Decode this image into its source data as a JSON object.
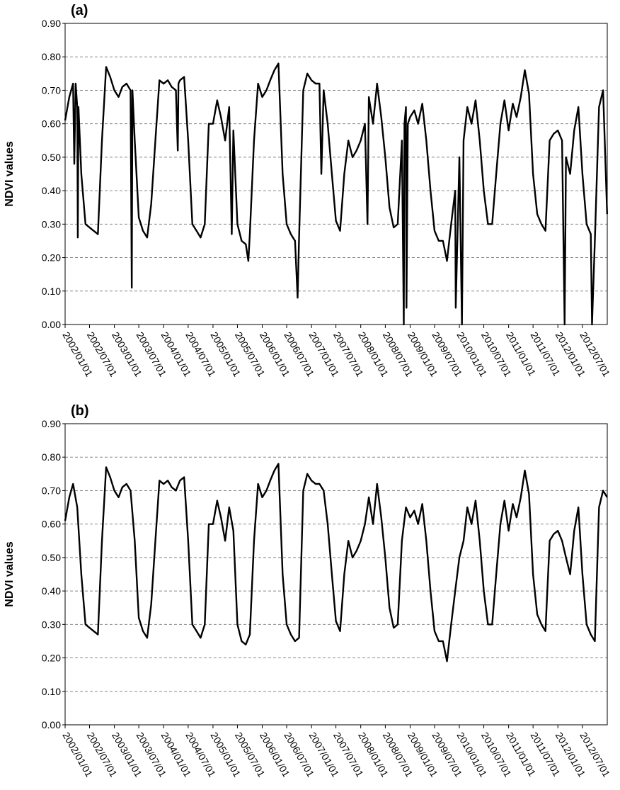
{
  "chart_data": [
    {
      "type": "line",
      "title": "(a)",
      "ylabel": "NDVI values",
      "color": "#000000",
      "grid": true,
      "xlim": [
        "2002/01/01",
        "2013/01/01"
      ],
      "ylim": [
        0,
        0.9
      ],
      "yticks": [
        {
          "value": 0,
          "label": "0.00"
        },
        {
          "value": 0.1,
          "label": "0.10"
        },
        {
          "value": 0.2,
          "label": "0.20"
        },
        {
          "value": 0.3,
          "label": "0.30"
        },
        {
          "value": 0.4,
          "label": "0.40"
        },
        {
          "value": 0.5,
          "label": "0.50"
        },
        {
          "value": 0.6,
          "label": "0.60"
        },
        {
          "value": 0.7,
          "label": "0.70"
        },
        {
          "value": 0.8,
          "label": "0.80"
        },
        {
          "value": 0.9,
          "label": "0.90"
        }
      ],
      "xticks": [
        "2002/01/01",
        "2002/07/01",
        "2003/01/01",
        "2003/07/01",
        "2004/01/01",
        "2004/07/01",
        "2005/01/01",
        "2005/07/01",
        "2006/01/01",
        "2006/07/01",
        "2007/01/01",
        "2007/07/01",
        "2008/01/01",
        "2008/07/01",
        "2009/01/01",
        "2009/07/01",
        "2010/01/01",
        "2010/07/01",
        "2011/01/01",
        "2011/07/01",
        "2012/01/01",
        "2012/07/01"
      ],
      "x": [
        "2002/01/01",
        "2002/02/01",
        "2002/03/01",
        "2002/03/10",
        "2002/03/20",
        "2002/04/01",
        "2002/04/05",
        "2002/04/10",
        "2002/05/01",
        "2002/06/01",
        "2002/07/01",
        "2002/08/01",
        "2002/09/01",
        "2002/10/01",
        "2002/11/01",
        "2002/12/01",
        "2003/01/01",
        "2003/02/01",
        "2003/03/01",
        "2003/04/01",
        "2003/05/01",
        "2003/05/10",
        "2003/05/15",
        "2003/06/01",
        "2003/07/01",
        "2003/08/01",
        "2003/09/01",
        "2003/10/01",
        "2003/11/01",
        "2003/12/01",
        "2004/01/01",
        "2004/02/01",
        "2004/03/01",
        "2004/04/01",
        "2004/04/15",
        "2004/04/20",
        "2004/05/01",
        "2004/06/01",
        "2004/07/01",
        "2004/08/01",
        "2004/09/01",
        "2004/10/01",
        "2004/11/01",
        "2004/12/01",
        "2005/01/01",
        "2005/02/01",
        "2005/03/01",
        "2005/04/01",
        "2005/05/01",
        "2005/05/20",
        "2005/06/01",
        "2005/07/01",
        "2005/08/01",
        "2005/09/01",
        "2005/09/20",
        "2005/10/01",
        "2005/11/01",
        "2005/12/01",
        "2006/01/01",
        "2006/02/01",
        "2006/03/01",
        "2006/04/01",
        "2006/05/01",
        "2006/06/01",
        "2006/07/01",
        "2006/08/01",
        "2006/09/01",
        "2006/09/20",
        "2006/10/01",
        "2006/11/01",
        "2006/12/01",
        "2007/01/01",
        "2007/02/01",
        "2007/03/01",
        "2007/03/15",
        "2007/04/01",
        "2007/05/01",
        "2007/06/01",
        "2007/07/01",
        "2007/08/01",
        "2007/09/01",
        "2007/10/01",
        "2007/11/01",
        "2007/12/01",
        "2008/01/01",
        "2008/02/01",
        "2008/02/20",
        "2008/03/01",
        "2008/04/01",
        "2008/05/01",
        "2008/06/01",
        "2008/07/01",
        "2008/08/01",
        "2008/09/01",
        "2008/10/01",
        "2008/11/01",
        "2008/11/15",
        "2008/11/20",
        "2008/12/01",
        "2008/12/05",
        "2008/12/15",
        "2009/01/01",
        "2009/02/01",
        "2009/03/01",
        "2009/04/01",
        "2009/05/01",
        "2009/06/01",
        "2009/07/01",
        "2009/08/01",
        "2009/09/01",
        "2009/10/01",
        "2009/11/01",
        "2009/12/01",
        "2009/12/05",
        "2010/01/01",
        "2010/01/20",
        "2010/02/01",
        "2010/03/01",
        "2010/04/01",
        "2010/05/01",
        "2010/06/01",
        "2010/07/01",
        "2010/08/01",
        "2010/09/01",
        "2010/10/01",
        "2010/11/01",
        "2010/12/01",
        "2011/01/01",
        "2011/02/01",
        "2011/03/01",
        "2011/04/01",
        "2011/05/01",
        "2011/06/01",
        "2011/07/01",
        "2011/08/01",
        "2011/09/01",
        "2011/10/01",
        "2011/11/01",
        "2011/12/01",
        "2012/01/01",
        "2012/02/01",
        "2012/02/20",
        "2012/03/01",
        "2012/04/01",
        "2012/05/01",
        "2012/06/01",
        "2012/07/01",
        "2012/08/01",
        "2012/09/01",
        "2012/09/10",
        "2012/10/01",
        "2012/11/01",
        "2012/12/01",
        "2012/12/31"
      ],
      "values": [
        0.61,
        0.68,
        0.72,
        0.48,
        0.72,
        0.65,
        0.26,
        0.65,
        0.45,
        0.3,
        0.29,
        0.28,
        0.27,
        0.55,
        0.77,
        0.74,
        0.7,
        0.68,
        0.71,
        0.72,
        0.7,
        0.11,
        0.7,
        0.55,
        0.32,
        0.28,
        0.26,
        0.36,
        0.55,
        0.73,
        0.72,
        0.73,
        0.71,
        0.7,
        0.52,
        0.72,
        0.73,
        0.74,
        0.55,
        0.3,
        0.28,
        0.26,
        0.3,
        0.6,
        0.6,
        0.67,
        0.62,
        0.55,
        0.65,
        0.27,
        0.58,
        0.3,
        0.25,
        0.24,
        0.19,
        0.27,
        0.55,
        0.72,
        0.68,
        0.7,
        0.73,
        0.76,
        0.78,
        0.45,
        0.3,
        0.27,
        0.25,
        0.08,
        0.26,
        0.7,
        0.75,
        0.73,
        0.72,
        0.72,
        0.45,
        0.7,
        0.6,
        0.45,
        0.31,
        0.28,
        0.45,
        0.55,
        0.5,
        0.52,
        0.55,
        0.6,
        0.3,
        0.68,
        0.6,
        0.72,
        0.62,
        0.5,
        0.35,
        0.29,
        0.3,
        0.55,
        0.0,
        0.6,
        0.65,
        0.05,
        0.6,
        0.62,
        0.64,
        0.6,
        0.66,
        0.55,
        0.4,
        0.28,
        0.25,
        0.25,
        0.19,
        0.3,
        0.4,
        0.05,
        0.5,
        0.0,
        0.55,
        0.65,
        0.6,
        0.67,
        0.55,
        0.4,
        0.3,
        0.3,
        0.45,
        0.6,
        0.67,
        0.58,
        0.66,
        0.62,
        0.68,
        0.76,
        0.69,
        0.45,
        0.33,
        0.3,
        0.28,
        0.55,
        0.57,
        0.58,
        0.55,
        0.0,
        0.5,
        0.45,
        0.58,
        0.65,
        0.45,
        0.3,
        0.27,
        0.0,
        0.25,
        0.65,
        0.7,
        0.33
      ]
    },
    {
      "type": "line",
      "title": "(b)",
      "ylabel": "NDVI values",
      "color": "#000000",
      "grid": true,
      "xlim": [
        "2002/01/01",
        "2013/01/01"
      ],
      "ylim": [
        0,
        0.9
      ],
      "yticks": [
        {
          "value": 0,
          "label": "0.00"
        },
        {
          "value": 0.1,
          "label": "0.10"
        },
        {
          "value": 0.2,
          "label": "0.20"
        },
        {
          "value": 0.3,
          "label": "0.30"
        },
        {
          "value": 0.4,
          "label": "0.40"
        },
        {
          "value": 0.5,
          "label": "0.50"
        },
        {
          "value": 0.6,
          "label": "0.60"
        },
        {
          "value": 0.7,
          "label": "0.70"
        },
        {
          "value": 0.8,
          "label": "0.80"
        },
        {
          "value": 0.9,
          "label": "0.90"
        }
      ],
      "xticks": [
        "2002/01/01",
        "2002/07/01",
        "2003/01/01",
        "2003/07/01",
        "2004/01/01",
        "2004/07/01",
        "2005/01/01",
        "2005/07/01",
        "2006/01/01",
        "2006/07/01",
        "2007/01/01",
        "2007/07/01",
        "2008/01/01",
        "2008/07/01",
        "2009/01/01",
        "2009/07/01",
        "2010/01/01",
        "2010/07/01",
        "2011/01/01",
        "2011/07/01",
        "2012/01/01",
        "2012/07/01"
      ],
      "x": [
        "2002/01/01",
        "2002/02/01",
        "2002/03/01",
        "2002/04/01",
        "2002/05/01",
        "2002/06/01",
        "2002/07/01",
        "2002/08/01",
        "2002/09/01",
        "2002/10/01",
        "2002/11/01",
        "2002/12/01",
        "2003/01/01",
        "2003/02/01",
        "2003/03/01",
        "2003/04/01",
        "2003/05/01",
        "2003/06/01",
        "2003/07/01",
        "2003/08/01",
        "2003/09/01",
        "2003/10/01",
        "2003/11/01",
        "2003/12/01",
        "2004/01/01",
        "2004/02/01",
        "2004/03/01",
        "2004/04/01",
        "2004/05/01",
        "2004/06/01",
        "2004/07/01",
        "2004/08/01",
        "2004/09/01",
        "2004/10/01",
        "2004/11/01",
        "2004/12/01",
        "2005/01/01",
        "2005/02/01",
        "2005/03/01",
        "2005/04/01",
        "2005/05/01",
        "2005/06/01",
        "2005/07/01",
        "2005/08/01",
        "2005/09/01",
        "2005/10/01",
        "2005/11/01",
        "2005/12/01",
        "2006/01/01",
        "2006/02/01",
        "2006/03/01",
        "2006/04/01",
        "2006/05/01",
        "2006/06/01",
        "2006/07/01",
        "2006/08/01",
        "2006/09/01",
        "2006/10/01",
        "2006/11/01",
        "2006/12/01",
        "2007/01/01",
        "2007/02/01",
        "2007/03/01",
        "2007/04/01",
        "2007/05/01",
        "2007/06/01",
        "2007/07/01",
        "2007/08/01",
        "2007/09/01",
        "2007/10/01",
        "2007/11/01",
        "2007/12/01",
        "2008/01/01",
        "2008/02/01",
        "2008/03/01",
        "2008/04/01",
        "2008/05/01",
        "2008/06/01",
        "2008/07/01",
        "2008/08/01",
        "2008/09/01",
        "2008/10/01",
        "2008/11/01",
        "2008/12/01",
        "2009/01/01",
        "2009/02/01",
        "2009/03/01",
        "2009/04/01",
        "2009/05/01",
        "2009/06/01",
        "2009/07/01",
        "2009/08/01",
        "2009/09/01",
        "2009/10/01",
        "2009/11/01",
        "2009/12/01",
        "2010/01/01",
        "2010/02/01",
        "2010/03/01",
        "2010/04/01",
        "2010/05/01",
        "2010/06/01",
        "2010/07/01",
        "2010/08/01",
        "2010/09/01",
        "2010/10/01",
        "2010/11/01",
        "2010/12/01",
        "2011/01/01",
        "2011/02/01",
        "2011/03/01",
        "2011/04/01",
        "2011/05/01",
        "2011/06/01",
        "2011/07/01",
        "2011/08/01",
        "2011/09/01",
        "2011/10/01",
        "2011/11/01",
        "2011/12/01",
        "2012/01/01",
        "2012/02/01",
        "2012/03/01",
        "2012/04/01",
        "2012/05/01",
        "2012/06/01",
        "2012/07/01",
        "2012/08/01",
        "2012/09/01",
        "2012/10/01",
        "2012/11/01",
        "2012/12/01",
        "2012/12/31"
      ],
      "values": [
        0.61,
        0.68,
        0.72,
        0.65,
        0.45,
        0.3,
        0.29,
        0.28,
        0.27,
        0.55,
        0.77,
        0.74,
        0.7,
        0.68,
        0.71,
        0.72,
        0.7,
        0.55,
        0.32,
        0.28,
        0.26,
        0.36,
        0.55,
        0.73,
        0.72,
        0.73,
        0.71,
        0.7,
        0.73,
        0.74,
        0.55,
        0.3,
        0.28,
        0.26,
        0.3,
        0.6,
        0.6,
        0.67,
        0.62,
        0.55,
        0.65,
        0.58,
        0.3,
        0.25,
        0.24,
        0.27,
        0.55,
        0.72,
        0.68,
        0.7,
        0.73,
        0.76,
        0.78,
        0.45,
        0.3,
        0.27,
        0.25,
        0.26,
        0.7,
        0.75,
        0.73,
        0.72,
        0.72,
        0.7,
        0.6,
        0.45,
        0.31,
        0.28,
        0.45,
        0.55,
        0.5,
        0.52,
        0.55,
        0.6,
        0.68,
        0.6,
        0.72,
        0.62,
        0.5,
        0.35,
        0.29,
        0.3,
        0.55,
        0.65,
        0.62,
        0.64,
        0.6,
        0.66,
        0.55,
        0.4,
        0.28,
        0.25,
        0.25,
        0.19,
        0.3,
        0.4,
        0.5,
        0.55,
        0.65,
        0.6,
        0.67,
        0.55,
        0.4,
        0.3,
        0.3,
        0.45,
        0.6,
        0.67,
        0.58,
        0.66,
        0.62,
        0.68,
        0.76,
        0.69,
        0.45,
        0.33,
        0.3,
        0.28,
        0.55,
        0.57,
        0.58,
        0.55,
        0.5,
        0.45,
        0.58,
        0.65,
        0.45,
        0.3,
        0.27,
        0.25,
        0.65,
        0.7,
        0.68
      ]
    }
  ]
}
